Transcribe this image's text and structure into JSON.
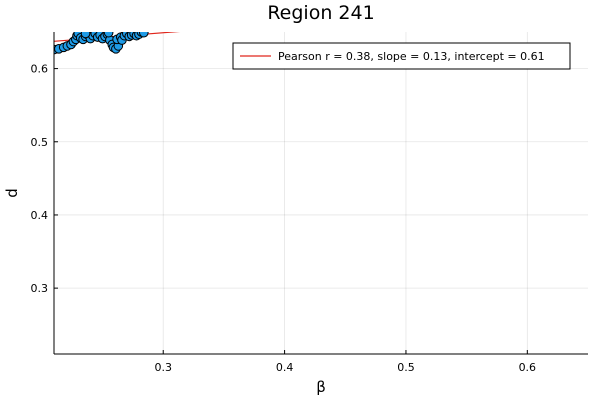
{
  "chart_data": {
    "type": "scatter",
    "title": "Region 241",
    "xlabel": "β",
    "ylabel": "d",
    "xlim": [
      0.21,
      0.65
    ],
    "ylim": [
      0.21,
      0.65
    ],
    "xticks": [
      0.3,
      0.4,
      0.5,
      0.6
    ],
    "yticks": [
      0.3,
      0.4,
      0.5,
      0.6
    ],
    "xtick_labels": [
      "0.3",
      "0.4",
      "0.5",
      "0.6"
    ],
    "ytick_labels": [
      "0.3",
      "0.4",
      "0.5",
      "0.6"
    ],
    "grid": true,
    "legend": {
      "placement": "top-right",
      "entries": [
        {
          "label": "Pearson r = 0.38, slope = 0.13, intercept = 0.61",
          "color": "#e0261c"
        }
      ]
    },
    "series": [
      {
        "marker_color": "#1f9be6",
        "marker_edge_color": "#000000",
        "points": [
          [
            0.21,
            0.626
          ],
          [
            0.214,
            0.627
          ],
          [
            0.218,
            0.629
          ],
          [
            0.221,
            0.631
          ],
          [
            0.224,
            0.633
          ],
          [
            0.226,
            0.637
          ],
          [
            0.228,
            0.64
          ],
          [
            0.229,
            0.645
          ],
          [
            0.23,
            0.648
          ],
          [
            0.232,
            0.642
          ],
          [
            0.234,
            0.64
          ],
          [
            0.236,
            0.644
          ],
          [
            0.238,
            0.646
          ],
          [
            0.24,
            0.641
          ],
          [
            0.242,
            0.645
          ],
          [
            0.244,
            0.648
          ],
          [
            0.246,
            0.643
          ],
          [
            0.248,
            0.646
          ],
          [
            0.25,
            0.641
          ],
          [
            0.252,
            0.644
          ],
          [
            0.254,
            0.647
          ],
          [
            0.256,
            0.639
          ],
          [
            0.258,
            0.633
          ],
          [
            0.259,
            0.629
          ],
          [
            0.261,
            0.627
          ],
          [
            0.263,
            0.631
          ],
          [
            0.262,
            0.64
          ],
          [
            0.265,
            0.643
          ],
          [
            0.266,
            0.639
          ],
          [
            0.268,
            0.645
          ],
          [
            0.27,
            0.648
          ],
          [
            0.272,
            0.644
          ],
          [
            0.274,
            0.646
          ],
          [
            0.276,
            0.648
          ],
          [
            0.278,
            0.645
          ],
          [
            0.28,
            0.647
          ],
          [
            0.282,
            0.65
          ],
          [
            0.284,
            0.649
          ],
          [
            0.236,
            0.648
          ],
          [
            0.255,
            0.649
          ]
        ],
        "fit_line": {
          "slope": 0.13,
          "intercept": 0.61,
          "color": "#e0261c"
        }
      }
    ]
  }
}
